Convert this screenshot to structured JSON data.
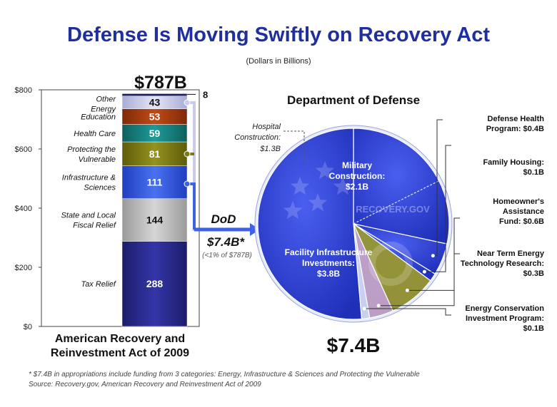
{
  "header": {
    "title": "Defense Is Moving Swiftly on Recovery Act",
    "subtitle": "(Dollars in Billions)"
  },
  "colors": {
    "title": "#1f2f9e",
    "pie_blue": "#2c3fd9",
    "pie_blue_dark": "#1e2fa8",
    "pie_olive": "#9c9a2e",
    "pie_pink": "#c9a6c6",
    "pie_light": "#d7dcf5",
    "arrow_blue": "#3d62e6"
  },
  "chart_data": [
    {
      "type": "bar",
      "stacked": true,
      "title": "$787B",
      "xlabel": "American Recovery and Reinvestment Act of 2009",
      "ylabel": "",
      "ylim": [
        0,
        800
      ],
      "y_ticks": [
        {
          "value": 0,
          "label": "$0"
        },
        {
          "value": 200,
          "label": "$200"
        },
        {
          "value": 400,
          "label": "$400"
        },
        {
          "value": 600,
          "label": "$600"
        },
        {
          "value": 800,
          "label": "$800"
        }
      ],
      "segments": [
        {
          "label": "Tax Relief",
          "value": 288,
          "display": "288",
          "color": "#27288a"
        },
        {
          "label": "State and Local Fiscal Relief",
          "value": 144,
          "display": "144",
          "color": "#b9b9b9"
        },
        {
          "label": "Infrastructure & Sciences",
          "value": 111,
          "display": "111",
          "color": "#2f55e0"
        },
        {
          "label": "Protecting the Vulnerable",
          "value": 81,
          "display": "81",
          "color": "#7c7a12"
        },
        {
          "label": "Health Care",
          "value": 59,
          "display": "59",
          "color": "#16807e"
        },
        {
          "label": "Education",
          "value": 53,
          "display": "53",
          "color": "#a53a10"
        },
        {
          "label": "Other Energy",
          "value": 43,
          "display": "43",
          "color": "#c9cbe8"
        },
        {
          "label": "",
          "value": 8,
          "display": "8",
          "color": "#1b1f5c"
        }
      ]
    },
    {
      "type": "pie",
      "title": "Department of Defense",
      "total_label": "$7.4B",
      "slices": [
        {
          "label": "Military Construction:",
          "value_label": "$2.1B",
          "value": 2.1,
          "color": "#2c3fd9"
        },
        {
          "label": "Defense Health Program:",
          "value_label": "$0.4B",
          "value": 0.4,
          "color": "#2c3fd9"
        },
        {
          "label": "Family Housing:",
          "value_label": "$0.1B",
          "value": 0.1,
          "color": "#2c3fd9"
        },
        {
          "label": "Homeowner's Assistance Fund:",
          "value_label": "$0.6B",
          "value": 0.6,
          "color": "#9c9a2e"
        },
        {
          "label": "Near Term Energy Technology Research:",
          "value_label": "$0.3B",
          "value": 0.3,
          "color": "#c9a6c6"
        },
        {
          "label": "Energy Conservation Investment Program:",
          "value_label": "$0.1B",
          "value": 0.1,
          "color": "#d7dcf5"
        },
        {
          "label": "Facility Infrastructure Investments:",
          "value_label": "$3.8B",
          "value": 3.8,
          "color": "#2c3fd9"
        }
      ],
      "annotation": {
        "line1": "Hospital",
        "line2": "Construction:",
        "line3": "$1.3B",
        "value": 1.3
      }
    }
  ],
  "callout": {
    "dod": "DoD",
    "amount": "$7.4B*",
    "note": "(<1% of $787B)"
  },
  "labels": {
    "other_energy": [
      "Other",
      "Energy"
    ],
    "education": [
      "Education"
    ],
    "health_care": [
      "Health Care"
    ],
    "protecting": [
      "Protecting the",
      "Vulnerable"
    ],
    "infrastructure": [
      "Infrastructure &",
      "Sciences"
    ],
    "state_local": [
      "State and Local",
      "Fiscal Relief"
    ],
    "tax_relief": [
      "Tax Relief"
    ],
    "defense_health": [
      "Defense Health",
      "Program: $0.4B"
    ],
    "family_housing": [
      "Family Housing:",
      "$0.1B"
    ],
    "homeowners": [
      "Homeowner's",
      "Assistance",
      "Fund: $0.6B"
    ],
    "near_term": [
      "Near Term Energy",
      "Technology Research:",
      "$0.3B"
    ],
    "energy_conservation": [
      "Energy Conservation",
      "Investment Program:",
      "$0.1B"
    ],
    "military": [
      "Military",
      "Construction:",
      "$2.1B"
    ],
    "facility": [
      "Facility Infrastructure",
      "Investments:",
      "$3.8B"
    ],
    "watermark": "RECOVERY.GOV"
  },
  "footer": {
    "note": "*  $7.4B in appropriations include funding from 3 categories:  Energy, Infrastructure & Sciences and Protecting the Vulnerable",
    "source": "Source: Recovery.gov, American Recovery and Reinvestment Act of 2009"
  }
}
